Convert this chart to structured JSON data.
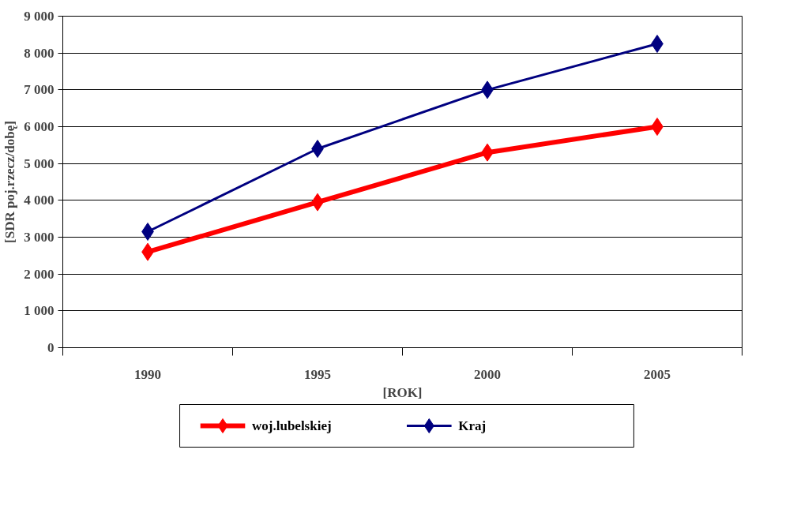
{
  "chart_data": {
    "type": "line",
    "xlabel": "[ROK]",
    "ylabel": "[SDR poj.rzecz/dobę]",
    "categories": [
      "1990",
      "1995",
      "2000",
      "2005"
    ],
    "series": [
      {
        "name": "woj.lubelskiej",
        "color": "#ff0000",
        "values": [
          2600,
          3950,
          5300,
          6000
        ]
      },
      {
        "name": "Kraj",
        "color": "#000080",
        "values": [
          3150,
          5400,
          7000,
          8250
        ]
      }
    ],
    "ylim": [
      0,
      9000
    ],
    "yticks": [
      0,
      {
        "value": 1000,
        "label": "1 000"
      },
      {
        "value": 2000,
        "label": "2 000"
      },
      {
        "value": 3000,
        "label": "3 000"
      },
      {
        "value": 4000,
        "label": "4 000"
      },
      {
        "value": 5000,
        "label": "5 000"
      },
      {
        "value": 6000,
        "label": "6 000"
      },
      {
        "value": 7000,
        "label": "7 000"
      },
      {
        "value": 8000,
        "label": "8 000"
      },
      {
        "value": 9000,
        "label": "9 000"
      }
    ],
    "grid": "y",
    "legend": "bottom",
    "marker": "diamond",
    "line_style": "solid"
  }
}
